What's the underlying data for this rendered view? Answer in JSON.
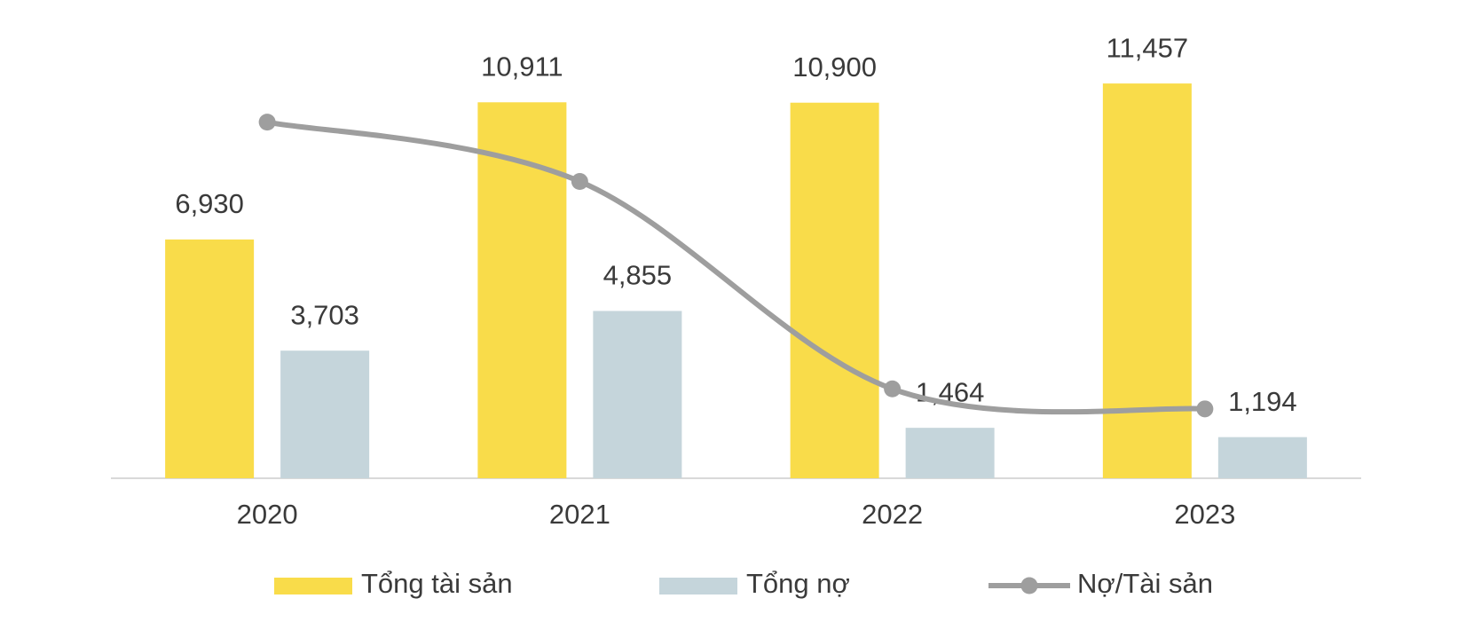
{
  "chart_data": {
    "type": "bar-line",
    "categories": [
      "2020",
      "2021",
      "2022",
      "2023"
    ],
    "series": [
      {
        "name": "Tổng tài sản",
        "type": "bar",
        "color": "#f9dc4a",
        "values": [
          6930,
          10911,
          10900,
          11457
        ],
        "value_labels": [
          "6,930",
          "10,911",
          "10,900",
          "11,457"
        ]
      },
      {
        "name": "Tổng nợ",
        "type": "bar",
        "color": "#c5d5db",
        "values": [
          3703,
          4855,
          1464,
          1194
        ],
        "value_labels": [
          "3,703",
          "4,855",
          "1,464",
          "1,194"
        ]
      },
      {
        "name": "Nợ/Tài sản",
        "type": "line",
        "axis": "y2",
        "color": "#9e9e9e",
        "values": [
          53.4,
          44.5,
          13.4,
          10.4
        ]
      }
    ],
    "ylim": [
      0,
      12000
    ],
    "y2lim": [
      0,
      62
    ],
    "legend": "bottom"
  }
}
